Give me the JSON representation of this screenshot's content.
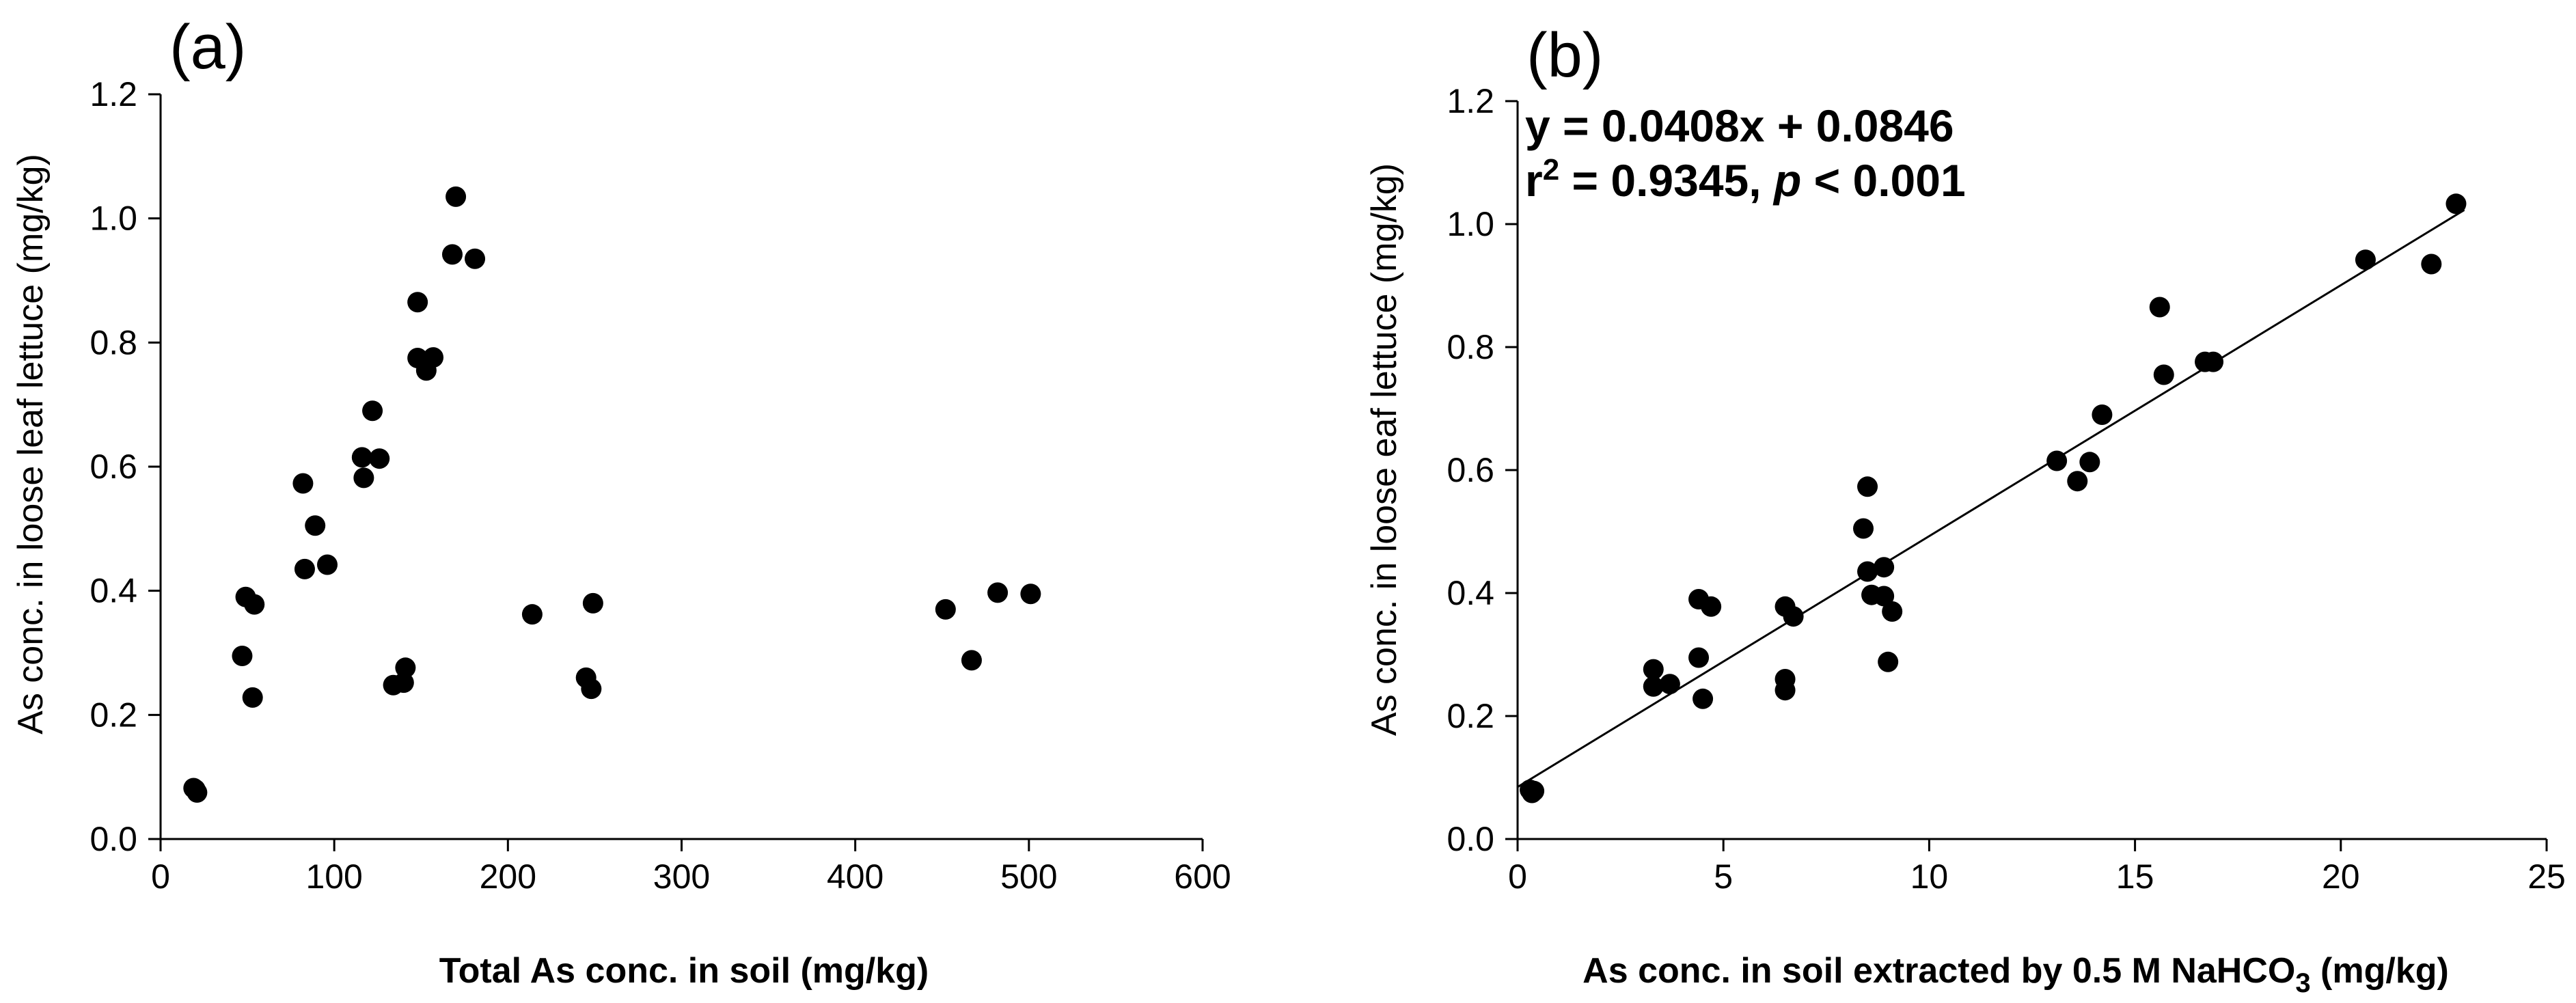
{
  "chart_data": [
    {
      "type": "scatter",
      "panel_label": "(a)",
      "xlabel": "Total As conc. in soil (mg/kg)",
      "ylabel": "As conc. in loose leaf lettuce (mg/kg)",
      "xlim": [
        0,
        600
      ],
      "ylim": [
        0,
        1.2
      ],
      "x_ticks": [
        0,
        100,
        200,
        300,
        400,
        500,
        600
      ],
      "x_tick_labels": [
        "0",
        "100",
        "200",
        "300",
        "400",
        "500",
        "600"
      ],
      "y_ticks": [
        0,
        0.2,
        0.4,
        0.6,
        0.8,
        1.0,
        1.2
      ],
      "y_tick_labels": [
        "0.0",
        "0.2",
        "0.4",
        "0.6",
        "0.8",
        "1.0",
        "1.2"
      ],
      "series": [
        {
          "name": "samples",
          "points": [
            [
              20,
              0.08
            ],
            [
              21,
              0.075
            ],
            [
              19,
              0.082
            ],
            [
              47,
              0.295
            ],
            [
              49,
              0.39
            ],
            [
              53,
              0.228
            ],
            [
              54,
              0.378
            ],
            [
              82,
              0.573
            ],
            [
              83,
              0.435
            ],
            [
              89,
              0.505
            ],
            [
              96,
              0.442
            ],
            [
              116,
              0.615
            ],
            [
              117,
              0.582
            ],
            [
              122,
              0.69
            ],
            [
              126,
              0.613
            ],
            [
              134,
              0.248
            ],
            [
              140,
              0.252
            ],
            [
              141,
              0.276
            ],
            [
              148,
              0.865
            ],
            [
              148,
              0.775
            ],
            [
              153,
              0.755
            ],
            [
              157,
              0.776
            ],
            [
              168,
              0.942
            ],
            [
              170,
              1.035
            ],
            [
              181,
              0.935
            ],
            [
              214,
              0.362
            ],
            [
              245,
              0.26
            ],
            [
              248,
              0.242
            ],
            [
              249,
              0.38
            ],
            [
              452,
              0.37
            ],
            [
              467,
              0.288
            ],
            [
              482,
              0.397
            ],
            [
              501,
              0.395
            ]
          ]
        }
      ]
    },
    {
      "type": "scatter",
      "panel_label": "(b)",
      "xlabel_main": "As conc. in soil extracted by 0.5 M NaHCO",
      "xlabel_sub": "3",
      "xlabel_unit": " (mg/kg)",
      "ylabel": "As conc. in loose eaf lettuce (mg/kg)",
      "xlim": [
        0,
        25
      ],
      "ylim": [
        0,
        1.2
      ],
      "x_ticks": [
        0,
        5,
        10,
        15,
        20,
        25
      ],
      "x_tick_labels": [
        "0",
        "5",
        "10",
        "15",
        "20",
        "25"
      ],
      "y_ticks": [
        0,
        0.2,
        0.4,
        0.6,
        0.8,
        1.0,
        1.2
      ],
      "y_tick_labels": [
        "0.0",
        "0.2",
        "0.4",
        "0.6",
        "0.8",
        "1.0",
        "1.2"
      ],
      "annotation": {
        "equation": "y = 0.0408x + 0.0846",
        "r_label": "r",
        "r_sup": "2",
        "r_value": " = 0.9345, ",
        "p_label": "p",
        "p_value": " < 0.001"
      },
      "fit": {
        "slope": 0.0408,
        "intercept": 0.0846,
        "x_range": [
          0,
          23
        ]
      },
      "series": [
        {
          "name": "samples",
          "points": [
            [
              0.3,
              0.08
            ],
            [
              0.35,
              0.075
            ],
            [
              0.4,
              0.078
            ],
            [
              3.3,
              0.276
            ],
            [
              3.3,
              0.248
            ],
            [
              3.7,
              0.252
            ],
            [
              4.4,
              0.39
            ],
            [
              4.4,
              0.295
            ],
            [
              4.5,
              0.228
            ],
            [
              4.7,
              0.378
            ],
            [
              6.5,
              0.378
            ],
            [
              6.5,
              0.26
            ],
            [
              6.5,
              0.242
            ],
            [
              6.7,
              0.362
            ],
            [
              8.4,
              0.505
            ],
            [
              8.5,
              0.573
            ],
            [
              8.5,
              0.435
            ],
            [
              8.6,
              0.397
            ],
            [
              8.9,
              0.442
            ],
            [
              8.9,
              0.395
            ],
            [
              9.1,
              0.37
            ],
            [
              9.0,
              0.288
            ],
            [
              13.1,
              0.615
            ],
            [
              13.6,
              0.582
            ],
            [
              13.9,
              0.613
            ],
            [
              14.2,
              0.69
            ],
            [
              15.6,
              0.865
            ],
            [
              15.7,
              0.755
            ],
            [
              16.7,
              0.776
            ],
            [
              16.9,
              0.776
            ],
            [
              20.6,
              0.942
            ],
            [
              22.2,
              0.935
            ],
            [
              22.8,
              1.033
            ]
          ]
        }
      ]
    }
  ]
}
